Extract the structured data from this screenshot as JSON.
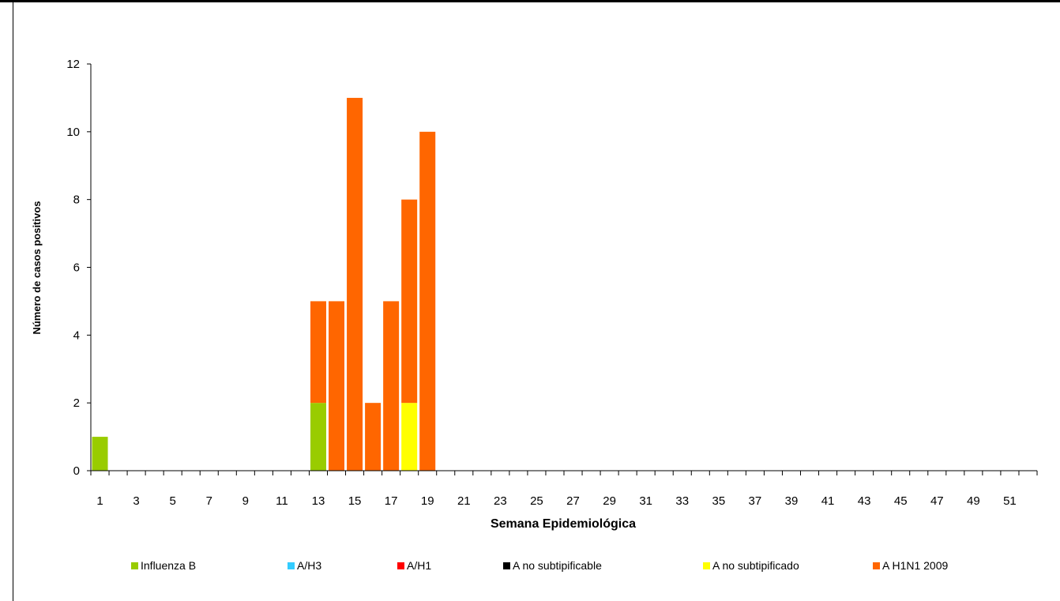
{
  "chart_data": {
    "type": "bar",
    "stacked": true,
    "title": "",
    "xlabel": "Semana Epidemiológica",
    "ylabel": "Número de casos positivos",
    "ylim": [
      0,
      12
    ],
    "yticks": [
      0,
      2,
      4,
      6,
      8,
      10,
      12
    ],
    "grid": false,
    "legend_position": "bottom",
    "categories": [
      1,
      2,
      3,
      4,
      5,
      6,
      7,
      8,
      9,
      10,
      11,
      12,
      13,
      14,
      15,
      16,
      17,
      18,
      19,
      20,
      21,
      22,
      23,
      24,
      25,
      26,
      27,
      28,
      29,
      30,
      31,
      32,
      33,
      34,
      35,
      36,
      37,
      38,
      39,
      40,
      41,
      42,
      43,
      44,
      45,
      46,
      47,
      48,
      49,
      50,
      51,
      52
    ],
    "xtick_labels": [
      "1",
      "3",
      "5",
      "7",
      "9",
      "11",
      "13",
      "15",
      "17",
      "19",
      "21",
      "23",
      "25",
      "27",
      "29",
      "31",
      "33",
      "35",
      "37",
      "39",
      "41",
      "43",
      "45",
      "47",
      "49",
      "51"
    ],
    "series": [
      {
        "name": "Influenza  B",
        "color": "#99cc00",
        "values": [
          1,
          0,
          0,
          0,
          0,
          0,
          0,
          0,
          0,
          0,
          0,
          0,
          2,
          0,
          0,
          0,
          0,
          0,
          0,
          0,
          0,
          0,
          0,
          0,
          0,
          0,
          0,
          0,
          0,
          0,
          0,
          0,
          0,
          0,
          0,
          0,
          0,
          0,
          0,
          0,
          0,
          0,
          0,
          0,
          0,
          0,
          0,
          0,
          0,
          0,
          0,
          0
        ]
      },
      {
        "name": "A/H3",
        "color": "#33ccff",
        "values": [
          0,
          0,
          0,
          0,
          0,
          0,
          0,
          0,
          0,
          0,
          0,
          0,
          0,
          0,
          0,
          0,
          0,
          0,
          0,
          0,
          0,
          0,
          0,
          0,
          0,
          0,
          0,
          0,
          0,
          0,
          0,
          0,
          0,
          0,
          0,
          0,
          0,
          0,
          0,
          0,
          0,
          0,
          0,
          0,
          0,
          0,
          0,
          0,
          0,
          0,
          0,
          0
        ]
      },
      {
        "name": "A/H1",
        "color": "#ff0000",
        "values": [
          0,
          0,
          0,
          0,
          0,
          0,
          0,
          0,
          0,
          0,
          0,
          0,
          0,
          0,
          0,
          0,
          0,
          0,
          0,
          0,
          0,
          0,
          0,
          0,
          0,
          0,
          0,
          0,
          0,
          0,
          0,
          0,
          0,
          0,
          0,
          0,
          0,
          0,
          0,
          0,
          0,
          0,
          0,
          0,
          0,
          0,
          0,
          0,
          0,
          0,
          0,
          0
        ]
      },
      {
        "name": "A no subtipificable",
        "color": "#000000",
        "values": [
          0,
          0,
          0,
          0,
          0,
          0,
          0,
          0,
          0,
          0,
          0,
          0,
          0,
          0,
          0,
          0,
          0,
          0,
          0,
          0,
          0,
          0,
          0,
          0,
          0,
          0,
          0,
          0,
          0,
          0,
          0,
          0,
          0,
          0,
          0,
          0,
          0,
          0,
          0,
          0,
          0,
          0,
          0,
          0,
          0,
          0,
          0,
          0,
          0,
          0,
          0,
          0
        ]
      },
      {
        "name": "A no subtipificado",
        "color": "#ffff00",
        "values": [
          0,
          0,
          0,
          0,
          0,
          0,
          0,
          0,
          0,
          0,
          0,
          0,
          0,
          0,
          0,
          0,
          0,
          2,
          0,
          0,
          0,
          0,
          0,
          0,
          0,
          0,
          0,
          0,
          0,
          0,
          0,
          0,
          0,
          0,
          0,
          0,
          0,
          0,
          0,
          0,
          0,
          0,
          0,
          0,
          0,
          0,
          0,
          0,
          0,
          0,
          0,
          0
        ]
      },
      {
        "name": "A H1N1 2009",
        "color": "#ff6600",
        "values": [
          0,
          0,
          0,
          0,
          0,
          0,
          0,
          0,
          0,
          0,
          0,
          0,
          3,
          5,
          11,
          2,
          5,
          6,
          10,
          0,
          0,
          0,
          0,
          0,
          0,
          0,
          0,
          0,
          0,
          0,
          0,
          0,
          0,
          0,
          0,
          0,
          0,
          0,
          0,
          0,
          0,
          0,
          0,
          0,
          0,
          0,
          0,
          0,
          0,
          0,
          0,
          0
        ]
      }
    ]
  }
}
